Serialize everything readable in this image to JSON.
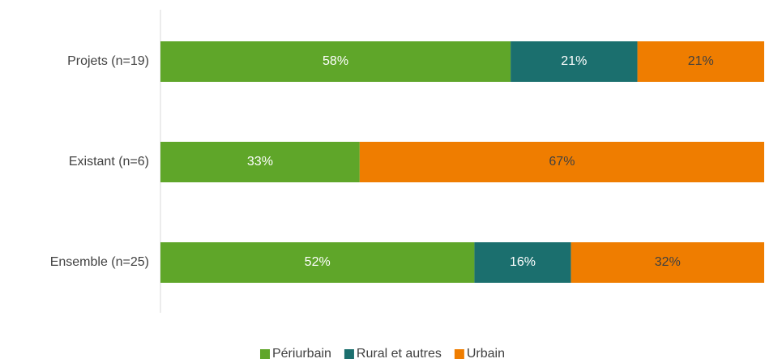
{
  "chart_data": {
    "type": "stacked_bar_horizontal",
    "categories": [
      "Projets (n=19)",
      "Existant (n=6)",
      "Ensemble (n=25)"
    ],
    "xlim": [
      0,
      100
    ],
    "legend": "bottom",
    "series": [
      {
        "name": "Périurbain",
        "color": "#5fa629",
        "label_color": "#ffffff",
        "values": [
          58,
          33,
          52
        ],
        "value_labels": [
          "58%",
          "33%",
          "52%"
        ]
      },
      {
        "name": "Rural et autres",
        "color": "#1b6f6e",
        "label_color": "#ffffff",
        "values": [
          21,
          0,
          16
        ],
        "value_labels": [
          "21%",
          null,
          "16%"
        ]
      },
      {
        "name": "Urbain",
        "color": "#ef7d00",
        "label_color": "#404040",
        "values": [
          21,
          67,
          32
        ],
        "value_labels": [
          "21%",
          "67%",
          "32%"
        ]
      }
    ]
  }
}
